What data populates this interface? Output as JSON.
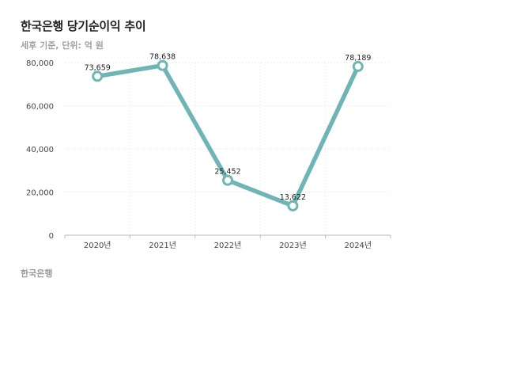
{
  "header": {
    "title": "한국은행 당기순이익 추이",
    "subtitle": "세후 기준, 단위: 억 원"
  },
  "footer": {
    "source": "한국은행"
  },
  "colors": {
    "line": "#6fb5b5",
    "grid": "#eeeeee",
    "axis": "#bbbbbb"
  },
  "chart_data": {
    "type": "line",
    "categories": [
      "2020년",
      "2021년",
      "2022년",
      "2023년",
      "2024년"
    ],
    "series": [
      {
        "values": [
          73659,
          78638,
          25452,
          13622,
          78189
        ]
      }
    ],
    "data_labels": [
      "73,659",
      "78,638",
      "25,452",
      "13,622",
      "78,189"
    ],
    "y_ticks": [
      0,
      20000,
      40000,
      60000,
      80000
    ],
    "y_tick_labels": [
      "0",
      "20,000",
      "40,000",
      "60,000",
      "80,000"
    ],
    "ylim": [
      0,
      80000
    ],
    "grid": true,
    "legend": "none"
  }
}
